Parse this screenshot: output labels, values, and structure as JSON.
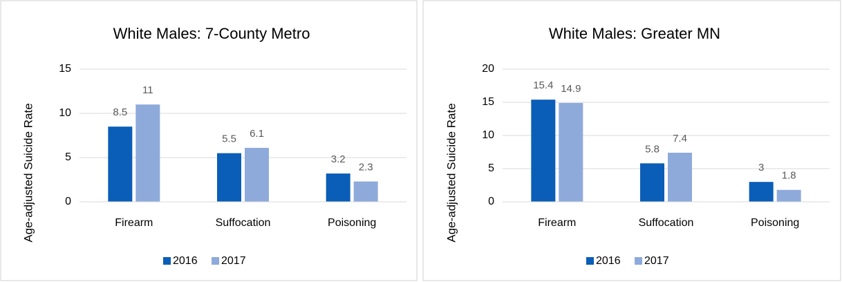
{
  "chart_data": [
    {
      "type": "bar",
      "title": "White Males: 7-County Metro",
      "y_label": "Age-adjusted Suicide Rate",
      "categories": [
        "Firearm",
        "Suffocation",
        "Poisoning"
      ],
      "series": [
        {
          "name": "2016",
          "color": "#0a5eb7",
          "values": [
            8.5,
            5.5,
            3.2
          ]
        },
        {
          "name": "2017",
          "color": "#8eaadb",
          "values": [
            11,
            6.1,
            2.3
          ]
        }
      ],
      "ylim": [
        0,
        15
      ],
      "yticks": [
        0,
        5,
        10,
        15
      ],
      "grid": true,
      "legend": "bottom"
    },
    {
      "type": "bar",
      "title": "White Males: Greater MN",
      "y_label": "Age-adjusted Suicide Rate",
      "categories": [
        "Firearm",
        "Suffocation",
        "Poisoning"
      ],
      "series": [
        {
          "name": "2016",
          "color": "#0a5eb7",
          "values": [
            15.4,
            5.8,
            3
          ]
        },
        {
          "name": "2017",
          "color": "#8eaadb",
          "values": [
            14.9,
            7.4,
            1.8
          ]
        }
      ],
      "ylim": [
        0,
        20
      ],
      "yticks": [
        0,
        5,
        10,
        15,
        20
      ],
      "grid": true,
      "legend": "bottom"
    }
  ]
}
